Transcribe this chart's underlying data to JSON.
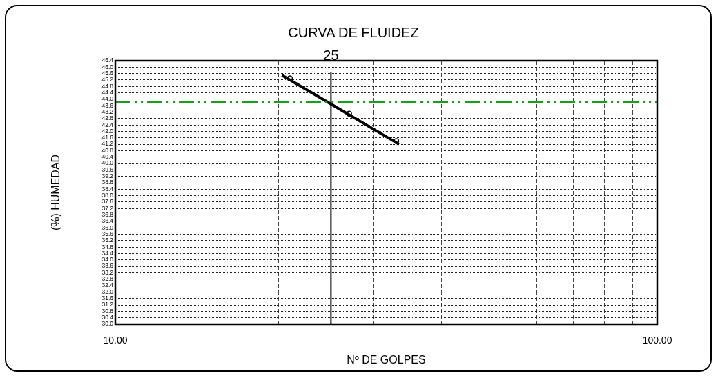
{
  "chart_data": {
    "type": "scatter",
    "title": "CURVA DE FLUIDEZ",
    "xlabel": "Nº DE GOLPES",
    "ylabel": "(%) HUMEDAD",
    "log": "x",
    "grid": true,
    "legend": false,
    "marker": "circle",
    "xlim": [
      10,
      100
    ],
    "xticks": [
      {
        "value": 10,
        "label": "10.00"
      },
      {
        "value": 20,
        "label": null
      },
      {
        "value": 30,
        "label": null
      },
      {
        "value": 40,
        "label": null
      },
      {
        "value": 50,
        "label": null
      },
      {
        "value": 60,
        "label": null
      },
      {
        "value": 70,
        "label": null
      },
      {
        "value": 80,
        "label": null
      },
      {
        "value": 90,
        "label": null
      },
      {
        "value": 100,
        "label": "100.00"
      }
    ],
    "ylim": [
      30,
      46.4
    ],
    "yticks": [
      {
        "value": 30,
        "label": "30.0"
      },
      {
        "value": 30.4,
        "label": "30.4"
      },
      {
        "value": 30.8,
        "label": "30.8"
      },
      {
        "value": 31.2,
        "label": "31.2"
      },
      {
        "value": 31.6,
        "label": "31.6"
      },
      {
        "value": 32,
        "label": "32.0"
      },
      {
        "value": 32.4,
        "label": "32.4"
      },
      {
        "value": 32.8,
        "label": "32.8"
      },
      {
        "value": 33.2,
        "label": "33.2"
      },
      {
        "value": 33.6,
        "label": "33.6"
      },
      {
        "value": 34,
        "label": "34.0"
      },
      {
        "value": 34.4,
        "label": "34.4"
      },
      {
        "value": 34.8,
        "label": "34.8"
      },
      {
        "value": 35.2,
        "label": "35.2"
      },
      {
        "value": 35.6,
        "label": "35.6"
      },
      {
        "value": 36,
        "label": "36.0"
      },
      {
        "value": 36.4,
        "label": "36.4"
      },
      {
        "value": 36.8,
        "label": "36.8"
      },
      {
        "value": 37.2,
        "label": "37.2"
      },
      {
        "value": 37.6,
        "label": "37.6"
      },
      {
        "value": 38,
        "label": "38.0"
      },
      {
        "value": 38.4,
        "label": "38.4"
      },
      {
        "value": 38.8,
        "label": "38.8"
      },
      {
        "value": 39.2,
        "label": "39.2"
      },
      {
        "value": 39.6,
        "label": "39.6"
      },
      {
        "value": 40,
        "label": "40.0"
      },
      {
        "value": 40.4,
        "label": "40.4"
      },
      {
        "value": 40.8,
        "label": "40.8"
      },
      {
        "value": 41.2,
        "label": "41.2"
      },
      {
        "value": 41.6,
        "label": "41.6"
      },
      {
        "value": 42,
        "label": "42.0"
      },
      {
        "value": 42.4,
        "label": "42.4"
      },
      {
        "value": 42.8,
        "label": "42.8"
      },
      {
        "value": 43.2,
        "label": "43.2"
      },
      {
        "value": 43.6,
        "label": "43.6"
      },
      {
        "value": 44,
        "label": "44.0"
      },
      {
        "value": 44.4,
        "label": "44.4"
      },
      {
        "value": 44.8,
        "label": "44.8"
      },
      {
        "value": 45.2,
        "label": "45.2"
      },
      {
        "value": 45.6,
        "label": "45.6"
      },
      {
        "value": 46,
        "label": "46.0"
      },
      {
        "value": 46.4,
        "label": "46.4"
      }
    ],
    "series": [
      {
        "color": "#000000",
        "x": [
          21,
          27,
          33
        ],
        "values": [
          45.3,
          43.1,
          41.4
        ]
      },
      {
        "type": "line",
        "color": "#000000",
        "marker": "none",
        "x": [
          20.3,
          33.4
        ],
        "values": [
          45.5,
          41.2
        ]
      }
    ],
    "ref_lines": [
      {
        "axis": "x",
        "value": 25,
        "label": "25",
        "color": "#000000",
        "line_style": "solid"
      },
      {
        "axis": "y",
        "value": 43.8,
        "label": null,
        "color": "#16a016",
        "line_style": "dashed"
      }
    ]
  }
}
